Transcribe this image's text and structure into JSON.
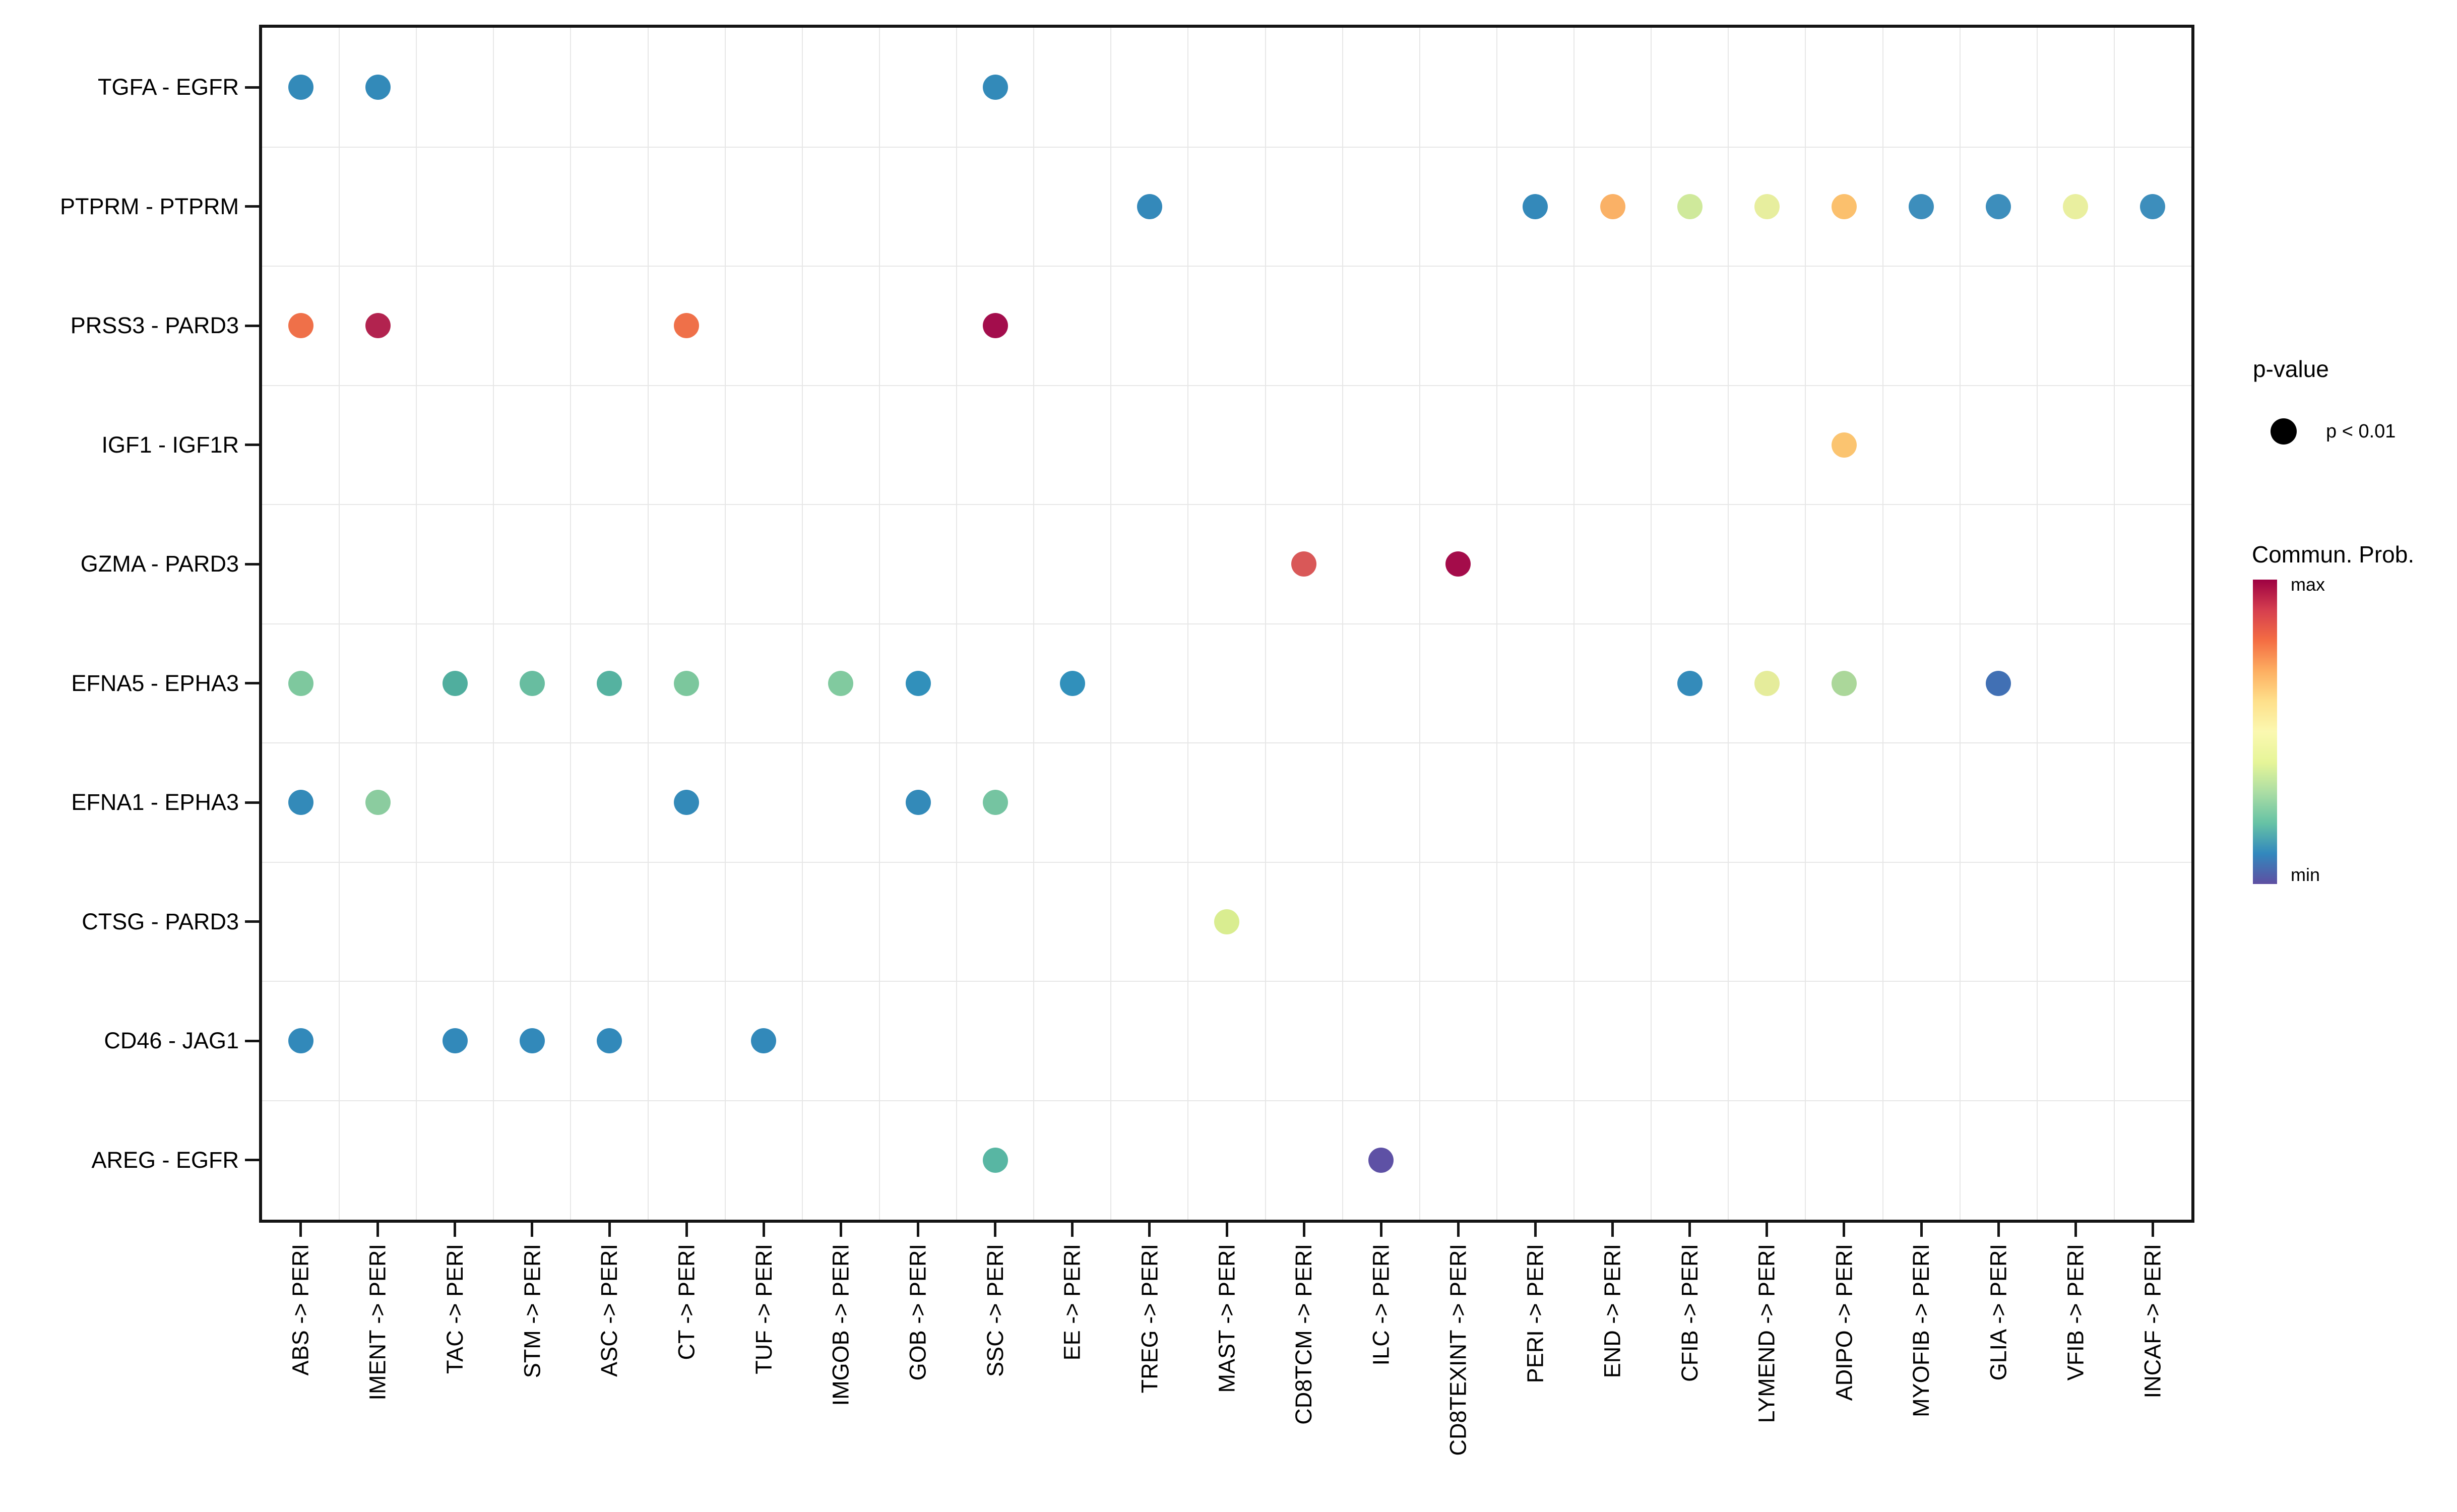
{
  "chart_data": {
    "type": "scatter",
    "title": "",
    "xlabel": "",
    "ylabel": "",
    "x_categories": [
      "ABS -> PERI",
      "IMENT -> PERI",
      "TAC -> PERI",
      "STM -> PERI",
      "ASC -> PERI",
      "CT -> PERI",
      "TUF -> PERI",
      "IMGOB -> PERI",
      "GOB -> PERI",
      "SSC -> PERI",
      "EE -> PERI",
      "TREG -> PERI",
      "MAST -> PERI",
      "CD8TCM -> PERI",
      "ILC -> PERI",
      "CD8TEXINT -> PERI",
      "PERI -> PERI",
      "END -> PERI",
      "CFIB -> PERI",
      "LYMEND -> PERI",
      "ADIPO -> PERI",
      "MYOFIB -> PERI",
      "GLIA -> PERI",
      "VFIB -> PERI",
      "INCAF -> PERI"
    ],
    "y_categories": [
      "TGFA - EGFR",
      "PTPRM - PTPRM",
      "PRSS3 - PARD3",
      "IGF1 - IGF1R",
      "GZMA - PARD3",
      "EFNA5 - EPHA3",
      "EFNA1 - EPHA3",
      "CTSG - PARD3",
      "CD46 - JAG1",
      "AREG - EGFR"
    ],
    "points": [
      {
        "y": "TGFA - EGFR",
        "x": "ABS -> PERI",
        "color": "#338ab9"
      },
      {
        "y": "TGFA - EGFR",
        "x": "IMENT -> PERI",
        "color": "#338ab9"
      },
      {
        "y": "TGFA - EGFR",
        "x": "SSC -> PERI",
        "color": "#338ab9"
      },
      {
        "y": "PTPRM - PTPRM",
        "x": "TREG -> PERI",
        "color": "#3489ba"
      },
      {
        "y": "PTPRM - PTPRM",
        "x": "PERI -> PERI",
        "color": "#3489ba"
      },
      {
        "y": "PTPRM - PTPRM",
        "x": "END -> PERI",
        "color": "#fab166"
      },
      {
        "y": "PTPRM - PTPRM",
        "x": "CFIB -> PERI",
        "color": "#cfe99b"
      },
      {
        "y": "PTPRM - PTPRM",
        "x": "LYMEND -> PERI",
        "color": "#e7ee9e"
      },
      {
        "y": "PTPRM - PTPRM",
        "x": "ADIPO -> PERI",
        "color": "#fbc06d"
      },
      {
        "y": "PTPRM - PTPRM",
        "x": "MYOFIB -> PERI",
        "color": "#3d8ebc"
      },
      {
        "y": "PTPRM - PTPRM",
        "x": "GLIA -> PERI",
        "color": "#3d8ebc"
      },
      {
        "y": "PTPRM - PTPRM",
        "x": "VFIB -> PERI",
        "color": "#e9ef9f"
      },
      {
        "y": "PTPRM - PTPRM",
        "x": "INCAF -> PERI",
        "color": "#3d8ebc"
      },
      {
        "y": "PRSS3 - PARD3",
        "x": "ABS -> PERI",
        "color": "#ef7049"
      },
      {
        "y": "PRSS3 - PARD3",
        "x": "IMENT -> PERI",
        "color": "#b2234f"
      },
      {
        "y": "PRSS3 - PARD3",
        "x": "CT -> PERI",
        "color": "#ef7049"
      },
      {
        "y": "PRSS3 - PARD3",
        "x": "SSC -> PERI",
        "color": "#a30d4c"
      },
      {
        "y": "IGF1 - IGF1R",
        "x": "ADIPO -> PERI",
        "color": "#fbc470"
      },
      {
        "y": "GZMA - PARD3",
        "x": "CD8TCM -> PERI",
        "color": "#d95858"
      },
      {
        "y": "GZMA - PARD3",
        "x": "CD8TEXINT -> PERI",
        "color": "#a40c4a"
      },
      {
        "y": "EFNA5 - EPHA3",
        "x": "ABS -> PERI",
        "color": "#7ec89e"
      },
      {
        "y": "EFNA5 - EPHA3",
        "x": "TAC -> PERI",
        "color": "#50ae9e"
      },
      {
        "y": "EFNA5 - EPHA3",
        "x": "STM -> PERI",
        "color": "#68bda0"
      },
      {
        "y": "EFNA5 - EPHA3",
        "x": "ASC -> PERI",
        "color": "#55b2a0"
      },
      {
        "y": "EFNA5 - EPHA3",
        "x": "CT -> PERI",
        "color": "#7cc79d"
      },
      {
        "y": "EFNA5 - EPHA3",
        "x": "IMGOB -> PERI",
        "color": "#81ca9f"
      },
      {
        "y": "EFNA5 - EPHA3",
        "x": "GOB -> PERI",
        "color": "#3190bb"
      },
      {
        "y": "EFNA5 - EPHA3",
        "x": "EE -> PERI",
        "color": "#3190bb"
      },
      {
        "y": "EFNA5 - EPHA3",
        "x": "CFIB -> PERI",
        "color": "#348bba"
      },
      {
        "y": "EFNA5 - EPHA3",
        "x": "LYMEND -> PERI",
        "color": "#e5ec9b"
      },
      {
        "y": "EFNA5 - EPHA3",
        "x": "ADIPO -> PERI",
        "color": "#abd79a"
      },
      {
        "y": "EFNA5 - EPHA3",
        "x": "GLIA -> PERI",
        "color": "#4170b4"
      },
      {
        "y": "EFNA1 - EPHA3",
        "x": "ABS -> PERI",
        "color": "#338ab9"
      },
      {
        "y": "EFNA1 - EPHA3",
        "x": "IMENT -> PERI",
        "color": "#8bcc9f"
      },
      {
        "y": "EFNA1 - EPHA3",
        "x": "CT -> PERI",
        "color": "#338ab9"
      },
      {
        "y": "EFNA1 - EPHA3",
        "x": "GOB -> PERI",
        "color": "#338ab9"
      },
      {
        "y": "EFNA1 - EPHA3",
        "x": "SSC -> PERI",
        "color": "#75c4a1"
      },
      {
        "y": "CTSG - PARD3",
        "x": "MAST -> PERI",
        "color": "#d9ed90"
      },
      {
        "y": "CD46 - JAG1",
        "x": "ABS -> PERI",
        "color": "#3289ba"
      },
      {
        "y": "CD46 - JAG1",
        "x": "TAC -> PERI",
        "color": "#3289ba"
      },
      {
        "y": "CD46 - JAG1",
        "x": "STM -> PERI",
        "color": "#3289ba"
      },
      {
        "y": "CD46 - JAG1",
        "x": "ASC -> PERI",
        "color": "#3289ba"
      },
      {
        "y": "CD46 - JAG1",
        "x": "TUF -> PERI",
        "color": "#3289ba"
      },
      {
        "y": "AREG - EGFR",
        "x": "SSC -> PERI",
        "color": "#58b6a3"
      },
      {
        "y": "AREG - EGFR",
        "x": "ILC -> PERI",
        "color": "#5e51a5"
      }
    ],
    "point_meaning": "dot drawn only where p < 0.01; fill color encodes communication probability (Spectral colormap, min=purple to max=dark red)",
    "layout_hints": {
      "grid": "light gray lines at category boundaries",
      "x_tick_rotation": 90,
      "legend_position": "right",
      "panel_border": "black",
      "background": "white"
    }
  },
  "legend": {
    "pvalue": {
      "title": "p-value",
      "item_label": "p < 0.01",
      "dot_color": "#000000"
    },
    "colorbar": {
      "title": "Commun. Prob.",
      "max_label": "max",
      "min_label": "min",
      "stops_top_to_bottom": [
        "#9e0142",
        "#d53e4f",
        "#f46d43",
        "#fdae61",
        "#fee08b",
        "#fbf8b0",
        "#e6f598",
        "#abdda4",
        "#66c2a5",
        "#3288bd",
        "#5e4fa2"
      ]
    }
  }
}
